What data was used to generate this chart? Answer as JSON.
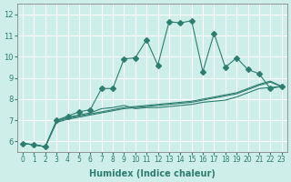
{
  "xlabel": "Humidex (Indice chaleur)",
  "ylabel": "",
  "xlim": [
    -0.5,
    23.5
  ],
  "ylim": [
    5.5,
    12.5
  ],
  "xticks": [
    0,
    1,
    2,
    3,
    4,
    5,
    6,
    7,
    8,
    9,
    10,
    11,
    12,
    13,
    14,
    15,
    16,
    17,
    18,
    19,
    20,
    21,
    22,
    23
  ],
  "yticks": [
    6,
    7,
    8,
    9,
    10,
    11,
    12
  ],
  "bg_color": "#cdeee9",
  "line_color": "#2e7d6e",
  "grid_color": "#ffffff",
  "series": [
    {
      "x": [
        0,
        1,
        2,
        3,
        4,
        5,
        6,
        7,
        8,
        9,
        10,
        11,
        12,
        13,
        14,
        15,
        16,
        17,
        18,
        19,
        20,
        21,
        22,
        23
      ],
      "y": [
        5.9,
        5.85,
        5.75,
        7.0,
        7.2,
        7.4,
        7.5,
        8.5,
        8.5,
        9.9,
        9.95,
        10.8,
        9.6,
        11.65,
        11.6,
        11.7,
        9.3,
        11.1,
        9.5,
        9.95,
        9.4,
        9.2,
        8.5,
        8.6
      ],
      "marker": "D",
      "markersize": 3
    },
    {
      "x": [
        0,
        1,
        2,
        3,
        4,
        5,
        6,
        7,
        8,
        9,
        10,
        11,
        12,
        13,
        14,
        15,
        16,
        17,
        18,
        19,
        20,
        21,
        22,
        23
      ],
      "y": [
        5.9,
        5.85,
        5.75,
        6.95,
        7.15,
        7.25,
        7.35,
        7.55,
        7.6,
        7.7,
        7.55,
        7.6,
        7.6,
        7.65,
        7.7,
        7.75,
        7.85,
        7.9,
        7.95,
        8.1,
        8.3,
        8.5,
        8.55,
        8.6
      ],
      "marker": null,
      "markersize": 0
    },
    {
      "x": [
        0,
        1,
        2,
        3,
        4,
        5,
        6,
        7,
        8,
        9,
        10,
        11,
        12,
        13,
        14,
        15,
        16,
        17,
        18,
        19,
        20,
        21,
        22,
        23
      ],
      "y": [
        5.9,
        5.85,
        5.75,
        6.95,
        7.1,
        7.2,
        7.3,
        7.4,
        7.5,
        7.6,
        7.65,
        7.7,
        7.75,
        7.8,
        7.85,
        7.9,
        8.0,
        8.1,
        8.2,
        8.3,
        8.5,
        8.7,
        8.85,
        8.6
      ],
      "marker": null,
      "markersize": 0
    },
    {
      "x": [
        0,
        1,
        2,
        3,
        4,
        5,
        6,
        7,
        8,
        9,
        10,
        11,
        12,
        13,
        14,
        15,
        16,
        17,
        18,
        19,
        20,
        21,
        22,
        23
      ],
      "y": [
        5.9,
        5.85,
        5.75,
        6.9,
        7.05,
        7.15,
        7.25,
        7.35,
        7.45,
        7.55,
        7.6,
        7.65,
        7.7,
        7.75,
        7.8,
        7.85,
        7.95,
        8.05,
        8.15,
        8.25,
        8.45,
        8.65,
        8.8,
        8.6
      ],
      "marker": null,
      "markersize": 0
    }
  ]
}
